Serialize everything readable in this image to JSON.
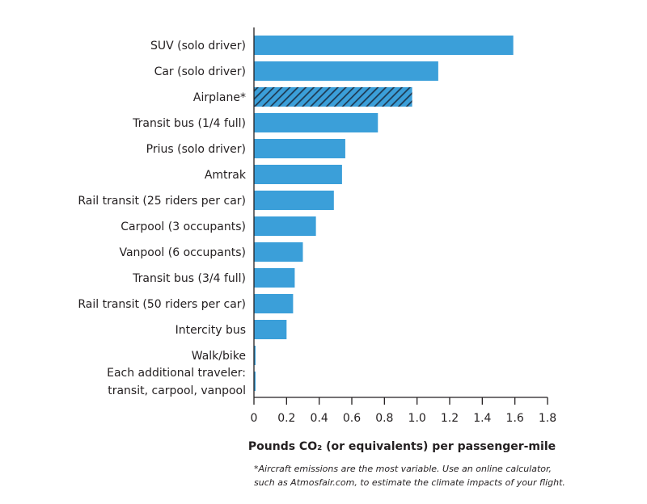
{
  "chart_data": {
    "type": "bar",
    "orientation": "horizontal",
    "categories": [
      [
        "SUV (solo driver)"
      ],
      [
        "Car (solo driver)"
      ],
      [
        "Airplane*"
      ],
      [
        "Transit bus (1/4 full)"
      ],
      [
        "Prius (solo driver)"
      ],
      [
        "Amtrak"
      ],
      [
        "Rail transit (25 riders per car)"
      ],
      [
        "Carpool (3 occupants)"
      ],
      [
        "Vanpool (6 occupants)"
      ],
      [
        "Transit bus (3/4 full)"
      ],
      [
        "Rail transit (50 riders per car)"
      ],
      [
        "Intercity bus"
      ],
      [
        "Walk/bike"
      ],
      [
        "Each additional traveler:",
        "transit, carpool, vanpool"
      ]
    ],
    "values": [
      1.59,
      1.13,
      0.97,
      0.76,
      0.56,
      0.54,
      0.49,
      0.38,
      0.3,
      0.25,
      0.24,
      0.2,
      0.01,
      0.01
    ],
    "hatched": [
      false,
      false,
      true,
      false,
      false,
      false,
      false,
      false,
      false,
      false,
      false,
      false,
      false,
      false
    ],
    "xlim": [
      0,
      1.8
    ],
    "xticks": [
      "0",
      "0.2",
      "0.4",
      "0.6",
      "0.8",
      "1.0",
      "1.2",
      "1.4",
      "1.6",
      "1.8"
    ],
    "xlabel": "Pounds CO₂ (or equivalents) per passenger-mile",
    "title": "",
    "grid": false,
    "colors": {
      "bar": "#3b9fd9",
      "hatch": "#1f3a52",
      "axis": "#231f20"
    }
  },
  "footnote": {
    "line1": "*Aircraft emissions are the most variable.  Use an online calculator,",
    "line2": "such as Atmosfair.com, to estimate the climate impacts of your flight."
  }
}
